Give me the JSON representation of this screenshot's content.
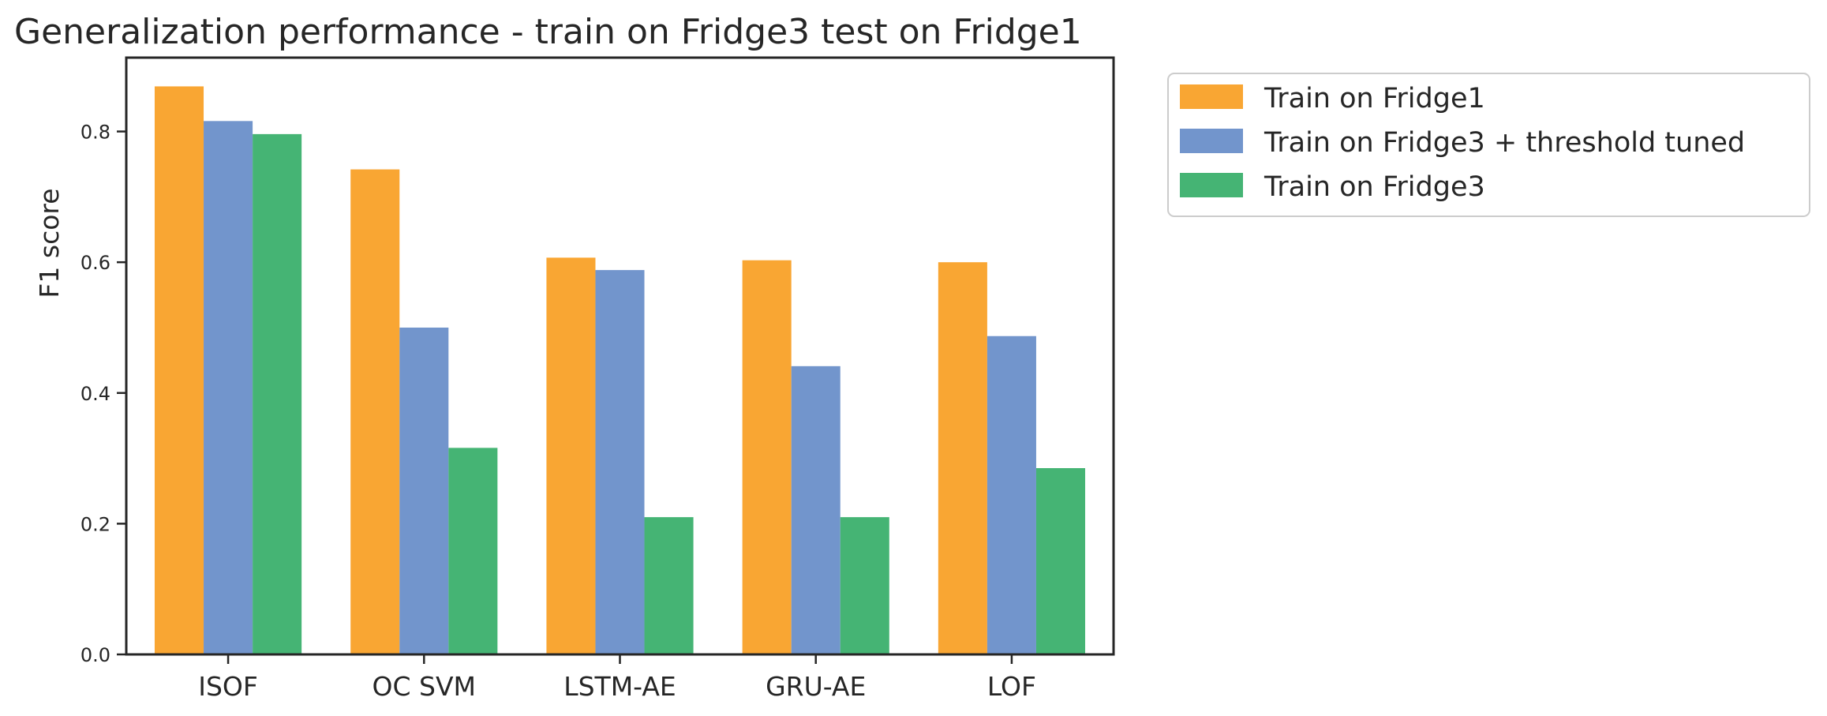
{
  "chart_data": {
    "type": "bar",
    "title": "Generalization performance - train on Fridge3 test on Fridge1",
    "xlabel": "",
    "ylabel": "F1 score",
    "categories": [
      "ISOF",
      "OC SVM",
      "LSTM-AE",
      "GRU-AE",
      "LOF"
    ],
    "series": [
      {
        "name": "Train on Fridge1",
        "color": "#f9a633",
        "values": [
          0.869,
          0.742,
          0.607,
          0.603,
          0.6
        ]
      },
      {
        "name": "Train on Fridge3 + threshold tuned",
        "color": "#7295cc",
        "values": [
          0.816,
          0.5,
          0.588,
          0.441,
          0.487
        ]
      },
      {
        "name": "Train on Fridge3",
        "color": "#45b474",
        "values": [
          0.796,
          0.316,
          0.21,
          0.21,
          0.285
        ]
      }
    ],
    "ylim": [
      0,
      0.913
    ],
    "yticks": [
      0.0,
      0.2,
      0.4,
      0.6,
      0.8
    ],
    "ytick_labels": [
      "0.0",
      "0.2",
      "0.4",
      "0.6",
      "0.8"
    ],
    "grid": false,
    "legend_position": "outside-top-right"
  }
}
